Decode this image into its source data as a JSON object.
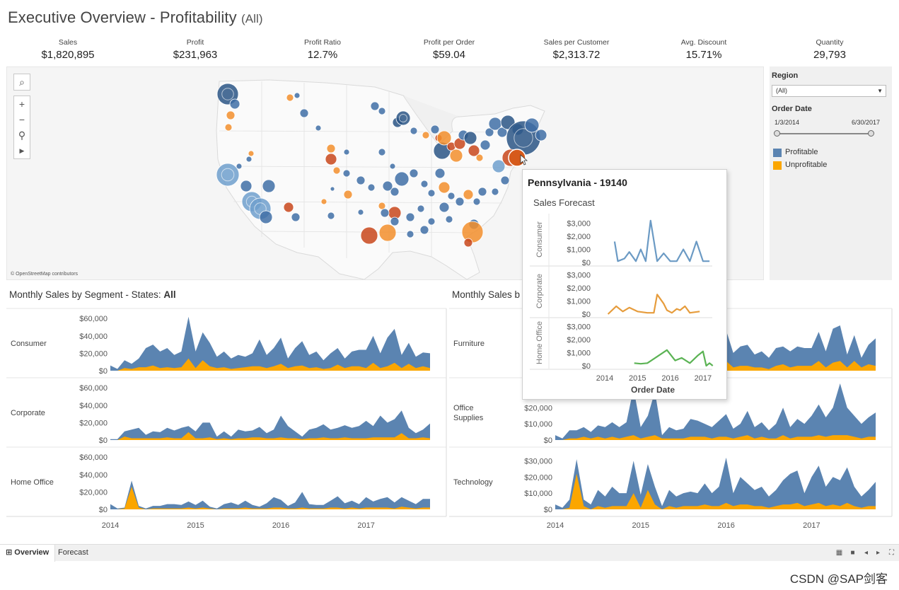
{
  "header": {
    "title": "Executive Overview - Profitability",
    "filter_note": "(All)"
  },
  "kpis": [
    {
      "label": "Sales",
      "value": "$1,820,895"
    },
    {
      "label": "Profit",
      "value": "$231,963"
    },
    {
      "label": "Profit Ratio",
      "value": "12.7%"
    },
    {
      "label": "Profit per Order",
      "value": "$59.04"
    },
    {
      "label": "Sales per Customer",
      "value": "$2,313.72"
    },
    {
      "label": "Avg. Discount",
      "value": "15.71%"
    },
    {
      "label": "Quantity",
      "value": "29,793"
    }
  ],
  "map": {
    "attribution": "© OpenStreetMap contributors",
    "controls": [
      "search-icon",
      "zoom-in-icon",
      "zoom-out-icon",
      "pin-icon",
      "play-icon"
    ],
    "controls_glyphs": {
      "search": "⌕",
      "zoom_in": "+",
      "zoom_out": "−",
      "pin": "⚲",
      "play": "▶"
    },
    "colors": {
      "profitable": "#4e7eb3",
      "unprofitable": "#f28e2b",
      "deep_loss": "#c8461b"
    }
  },
  "sidebar": {
    "region_label": "Region",
    "region_value": "(All)",
    "region_arrow": "▼",
    "order_date_label": "Order Date",
    "date_start": "1/3/2014",
    "date_end": "6/30/2017",
    "legend": [
      {
        "label": "Profitable",
        "color": "#5b84b1"
      },
      {
        "label": "Unprofitable",
        "color": "#fba600"
      }
    ]
  },
  "left_panel": {
    "title_prefix": "Monthly Sales by Segment - States: ",
    "title_value": "All"
  },
  "right_panel": {
    "title_visible": "Monthly Sales b"
  },
  "tooltip": {
    "title": "Pennsylvania - 19140",
    "subtitle": "Sales Forecast",
    "xlabel": "Order Date"
  },
  "tabs": [
    {
      "label": "Overview",
      "icon": "⊞"
    },
    {
      "label": "Forecast"
    }
  ],
  "bottom_icons": [
    "▦",
    "■",
    "◂",
    "▸",
    "⛶"
  ],
  "watermark": "CSDN @SAP剑客",
  "chart_data": [
    {
      "id": "segment",
      "type": "area",
      "title": "Monthly Sales by Segment - States: All",
      "x_ticks": [
        "2014",
        "2015",
        "2016",
        "2017"
      ],
      "ylim": [
        0,
        65000
      ],
      "y_ticks": [
        "$60,000",
        "$40,000",
        "$20,000",
        "$0"
      ],
      "y_tick_values": [
        60000,
        40000,
        20000,
        0
      ],
      "series_colors": {
        "profitable": "#5b84b1",
        "unprofitable": "#fba600"
      },
      "panels": [
        {
          "label": "Consumer",
          "profitable": [
            6000,
            2000,
            12000,
            8000,
            14000,
            26000,
            30000,
            22000,
            26000,
            18000,
            22000,
            62000,
            22000,
            44000,
            32000,
            16000,
            22000,
            14000,
            18000,
            16000,
            20000,
            36000,
            18000,
            26000,
            38000,
            14000,
            26000,
            34000,
            18000,
            22000,
            12000,
            20000,
            26000,
            14000,
            22000,
            24000,
            24000,
            40000,
            20000,
            38000,
            48000,
            18000,
            32000,
            16000,
            21000,
            20000
          ],
          "unprofitable": [
            0,
            0,
            3000,
            2000,
            4000,
            4000,
            6000,
            3000,
            4000,
            3000,
            4000,
            14000,
            3000,
            12000,
            5000,
            3000,
            4000,
            2000,
            3000,
            4000,
            5000,
            5000,
            3000,
            5000,
            8000,
            3000,
            5000,
            6000,
            3000,
            4000,
            2000,
            3000,
            7000,
            3000,
            5000,
            5000,
            3000,
            9000,
            3000,
            5000,
            9000,
            3000,
            8000,
            3000,
            5000,
            3000
          ]
        },
        {
          "label": "Corporate",
          "profitable": [
            1000,
            1000,
            10000,
            12000,
            14000,
            6000,
            10000,
            9000,
            14000,
            11000,
            14000,
            16000,
            10000,
            20000,
            20000,
            4000,
            10000,
            4000,
            12000,
            10000,
            11000,
            15000,
            8000,
            12000,
            28000,
            16000,
            10000,
            4000,
            12000,
            14000,
            18000,
            12000,
            14000,
            17000,
            14000,
            16000,
            22000,
            16000,
            28000,
            20000,
            24000,
            34000,
            14000,
            8000,
            12000,
            19000
          ],
          "unprofitable": [
            0,
            0,
            4000,
            2000,
            2000,
            2000,
            2000,
            2000,
            3000,
            2000,
            2000,
            9000,
            2000,
            2000,
            3000,
            1000,
            2000,
            1000,
            2000,
            2000,
            3000,
            3000,
            2000,
            2000,
            3000,
            2000,
            2000,
            1000,
            2000,
            2000,
            3000,
            2000,
            2000,
            3000,
            2000,
            2000,
            2000,
            3000,
            3000,
            3000,
            3000,
            8000,
            2000,
            2000,
            3000,
            2000
          ]
        },
        {
          "label": "Home Office",
          "profitable": [
            6000,
            1000,
            2000,
            33000,
            4000,
            1000,
            4000,
            4000,
            6000,
            6000,
            5000,
            9000,
            5000,
            10000,
            3000,
            1000,
            6000,
            8000,
            5000,
            10000,
            5000,
            3000,
            7000,
            14000,
            11000,
            4000,
            8000,
            20000,
            6000,
            5000,
            5000,
            10000,
            15000,
            7000,
            10000,
            6000,
            14000,
            9000,
            12000,
            14000,
            8000,
            14000,
            10000,
            6000,
            12000,
            12000
          ],
          "unprofitable": [
            0,
            0,
            1000,
            26000,
            2000,
            0,
            1000,
            1000,
            1000,
            1000,
            1000,
            2000,
            1000,
            2000,
            1000,
            0,
            1000,
            1000,
            1000,
            2000,
            1000,
            1000,
            1000,
            2000,
            2000,
            1000,
            1000,
            2000,
            1000,
            1000,
            1000,
            2000,
            2000,
            1000,
            2000,
            1000,
            2000,
            2000,
            2000,
            2000,
            1000,
            3000,
            2000,
            1000,
            2000,
            2000
          ]
        }
      ]
    },
    {
      "id": "category",
      "type": "area",
      "title": "Monthly Sales b",
      "x_ticks": [
        "2014",
        "2015",
        "2016",
        "2017"
      ],
      "ylim": [
        0,
        35000
      ],
      "y_ticks": [
        "$30,000",
        "$20,000",
        "$10,000",
        "$0"
      ],
      "y_tick_values": [
        30000,
        20000,
        10000,
        0
      ],
      "series_colors": {
        "profitable": "#5b84b1",
        "unprofitable": "#fba600"
      },
      "panels": [
        {
          "label": "Furniture",
          "profitable": [
            3000,
            1000,
            6000,
            13000,
            8000,
            16000,
            15000,
            9000,
            13000,
            11000,
            14000,
            30000,
            11000,
            24000,
            18000,
            7000,
            14000,
            8000,
            11000,
            10000,
            12000,
            20000,
            8000,
            14000,
            25000,
            11000,
            15000,
            16000,
            10000,
            12000,
            8000,
            14000,
            15000,
            12000,
            15000,
            14000,
            14000,
            24000,
            12000,
            26000,
            28000,
            10000,
            22000,
            8000,
            16000,
            20000
          ],
          "unprofitable": [
            0,
            0,
            2000,
            3000,
            2000,
            3000,
            4000,
            2000,
            3000,
            2000,
            3000,
            8000,
            2000,
            7000,
            4000,
            1000,
            3000,
            1000,
            2000,
            2000,
            3000,
            5000,
            2000,
            3000,
            6000,
            2000,
            3000,
            3000,
            2000,
            2000,
            1000,
            3000,
            4000,
            2000,
            3000,
            3000,
            3000,
            6000,
            2000,
            5000,
            6000,
            2000,
            6000,
            2000,
            4000,
            3000
          ]
        },
        {
          "label": "Office\nSupplies",
          "profitable": [
            3000,
            1000,
            6000,
            6000,
            8000,
            5000,
            9000,
            8000,
            11000,
            8000,
            11000,
            32000,
            8000,
            15000,
            30000,
            3000,
            8000,
            6000,
            7000,
            13000,
            12000,
            10000,
            8000,
            12000,
            16000,
            7000,
            10000,
            18000,
            8000,
            11000,
            6000,
            10000,
            20000,
            8000,
            13000,
            10000,
            15000,
            22000,
            14000,
            20000,
            35000,
            20000,
            15000,
            10000,
            14000,
            17000
          ],
          "unprofitable": [
            0,
            0,
            1000,
            1000,
            2000,
            1000,
            2000,
            1000,
            2000,
            1000,
            2000,
            3000,
            1000,
            2000,
            3000,
            1000,
            1000,
            1000,
            1000,
            2000,
            2000,
            2000,
            1000,
            2000,
            2000,
            1000,
            2000,
            3000,
            1000,
            2000,
            1000,
            1000,
            3000,
            1000,
            2000,
            2000,
            2000,
            3000,
            2000,
            3000,
            3000,
            3000,
            2000,
            1000,
            2000,
            2000
          ]
        },
        {
          "label": "Technology",
          "profitable": [
            3000,
            1000,
            6000,
            31000,
            6000,
            3000,
            12000,
            8000,
            14000,
            10000,
            10000,
            30000,
            9000,
            28000,
            14000,
            2000,
            12000,
            8000,
            10000,
            11000,
            10000,
            16000,
            10000,
            14000,
            32000,
            10000,
            20000,
            16000,
            12000,
            14000,
            8000,
            12000,
            18000,
            22000,
            24000,
            10000,
            20000,
            27000,
            14000,
            20000,
            18000,
            26000,
            14000,
            8000,
            12000,
            17000
          ],
          "unprofitable": [
            0,
            0,
            1000,
            22000,
            2000,
            0,
            2000,
            1000,
            2000,
            2000,
            2000,
            10000,
            1000,
            12000,
            3000,
            0,
            2000,
            1000,
            2000,
            2000,
            2000,
            3000,
            2000,
            2000,
            4000,
            2000,
            3000,
            3000,
            2000,
            2000,
            1000,
            2000,
            3000,
            3000,
            4000,
            2000,
            3000,
            4000,
            2000,
            3000,
            2000,
            4000,
            2000,
            1000,
            2000,
            2000
          ]
        }
      ]
    },
    {
      "id": "forecast",
      "type": "line",
      "title": "Sales Forecast",
      "xlabel": "Order Date",
      "x_ticks": [
        "2014",
        "2015",
        "2016",
        "2017"
      ],
      "x_tick_positions": [
        2014,
        2015,
        2016,
        2017
      ],
      "x_range": [
        2014,
        2017.5
      ],
      "y_ticks": [
        "$3,000",
        "$2,000",
        "$1,000",
        "$0"
      ],
      "y_tick_values": [
        3000,
        2000,
        1000,
        0
      ],
      "ylim": [
        0,
        3300
      ],
      "panels": [
        {
          "label": "Consumer",
          "color": "#6b9ac4",
          "points": [
            [
              2014.3,
              1600
            ],
            [
              2014.4,
              100
            ],
            [
              2014.6,
              300
            ],
            [
              2014.75,
              800
            ],
            [
              2014.95,
              100
            ],
            [
              2015.1,
              1000
            ],
            [
              2015.25,
              100
            ],
            [
              2015.4,
              3200
            ],
            [
              2015.6,
              100
            ],
            [
              2015.8,
              700
            ],
            [
              2016.0,
              100
            ],
            [
              2016.2,
              100
            ],
            [
              2016.4,
              1000
            ],
            [
              2016.6,
              100
            ],
            [
              2016.8,
              1600
            ],
            [
              2017.0,
              100
            ],
            [
              2017.2,
              100
            ]
          ]
        },
        {
          "label": "Corporate",
          "color": "#e69c3c",
          "points": [
            [
              2014.1,
              0
            ],
            [
              2014.35,
              600
            ],
            [
              2014.55,
              200
            ],
            [
              2014.75,
              500
            ],
            [
              2015.0,
              200
            ],
            [
              2015.3,
              100
            ],
            [
              2015.5,
              100
            ],
            [
              2015.6,
              1500
            ],
            [
              2015.8,
              800
            ],
            [
              2015.9,
              300
            ],
            [
              2016.05,
              100
            ],
            [
              2016.2,
              400
            ],
            [
              2016.3,
              300
            ],
            [
              2016.45,
              600
            ],
            [
              2016.6,
              100
            ],
            [
              2016.9,
              200
            ]
          ]
        },
        {
          "label": "Home Office",
          "color": "#5bb354",
          "points": [
            [
              2014.9,
              200
            ],
            [
              2015.1,
              150
            ],
            [
              2015.3,
              200
            ],
            [
              2015.6,
              700
            ],
            [
              2015.9,
              1200
            ],
            [
              2016.15,
              400
            ],
            [
              2016.35,
              600
            ],
            [
              2016.6,
              200
            ],
            [
              2016.85,
              800
            ],
            [
              2017.0,
              1100
            ],
            [
              2017.1,
              0
            ],
            [
              2017.2,
              200
            ],
            [
              2017.3,
              0
            ]
          ]
        }
      ]
    }
  ]
}
